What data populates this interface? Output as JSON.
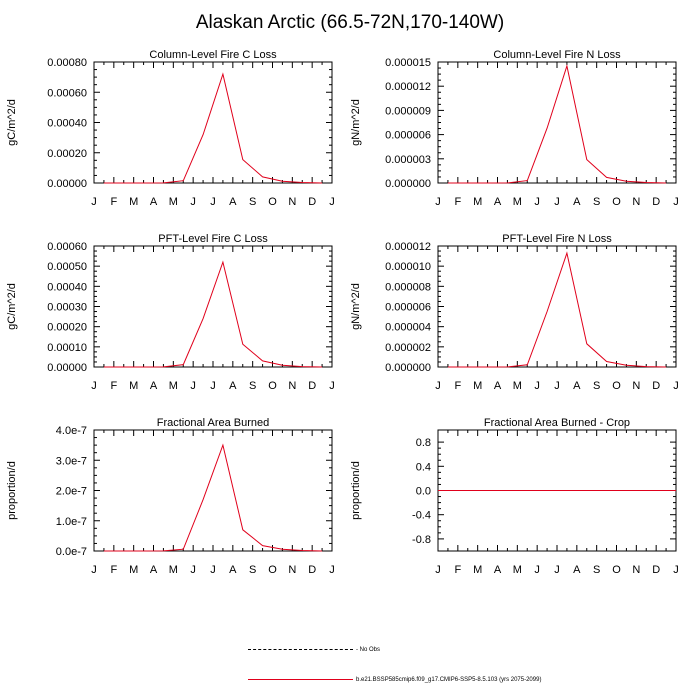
{
  "title": "Alaskan Arctic (66.5-72N,170-140W)",
  "colors": {
    "series": "#e0001b",
    "axis": "#000000",
    "background": "#ffffff"
  },
  "months": [
    "J",
    "F",
    "M",
    "A",
    "M",
    "J",
    "J",
    "A",
    "S",
    "O",
    "N",
    "D",
    "J"
  ],
  "chart_data": [
    {
      "type": "line",
      "title": "Column-Level Fire C Loss",
      "ylabel": "gC/m^2/d",
      "ylim": [
        0,
        0.0008
      ],
      "yticks": [
        "0.00000",
        "0.00020",
        "0.00040",
        "0.00060",
        "0.00080"
      ],
      "x": [
        0.5,
        1.5,
        2.5,
        3.5,
        4.5,
        5.5,
        6.5,
        7.5,
        8.5,
        9.5,
        10.5,
        11.5
      ],
      "series": [
        {
          "name": "b.e21.BSSP585cmip6.f09_g17.CMIP6-SSP5-8.5.103 (yrs 2075-2099)",
          "values": [
            0,
            0,
            0,
            5e-07,
            1.5e-05,
            0.00032,
            0.00072,
            0.000155,
            4e-05,
            1.2e-05,
            3e-06,
            0
          ]
        }
      ]
    },
    {
      "type": "line",
      "title": "Column-Level Fire N Loss",
      "ylabel": "gN/m^2/d",
      "ylim": [
        0,
        1.5e-05
      ],
      "yticks": [
        "0.000000",
        "0.000003",
        "0.000006",
        "0.000009",
        "0.000012",
        "0.000015"
      ],
      "x": [
        0.5,
        1.5,
        2.5,
        3.5,
        4.5,
        5.5,
        6.5,
        7.5,
        8.5,
        9.5,
        10.5,
        11.5
      ],
      "series": [
        {
          "name": "b.e21.BSSP585cmip6.f09_g17.CMIP6-SSP5-8.5.103 (yrs 2075-2099)",
          "values": [
            0,
            0,
            0,
            1e-08,
            3e-07,
            6.8e-06,
            1.45e-05,
            2.9e-06,
            7e-07,
            2.2e-07,
            6e-08,
            0
          ]
        }
      ]
    },
    {
      "type": "line",
      "title": "PFT-Level Fire C Loss",
      "ylabel": "gC/m^2/d",
      "ylim": [
        0,
        0.0006
      ],
      "yticks": [
        "0.00000",
        "0.00010",
        "0.00020",
        "0.00030",
        "0.00040",
        "0.00050",
        "0.00060"
      ],
      "x": [
        0.5,
        1.5,
        2.5,
        3.5,
        4.5,
        5.5,
        6.5,
        7.5,
        8.5,
        9.5,
        10.5,
        11.5
      ],
      "series": [
        {
          "name": "b.e21.BSSP585cmip6.f09_g17.CMIP6-SSP5-8.5.103 (yrs 2075-2099)",
          "values": [
            0,
            0,
            0,
            4e-07,
            1.2e-05,
            0.00024,
            0.00052,
            0.000113,
            3e-05,
            9e-06,
            2e-06,
            0
          ]
        }
      ]
    },
    {
      "type": "line",
      "title": "PFT-Level Fire N Loss",
      "ylabel": "gN/m^2/d",
      "ylim": [
        0,
        1.2e-05
      ],
      "yticks": [
        "0.000000",
        "0.000002",
        "0.000004",
        "0.000006",
        "0.000008",
        "0.000010",
        "0.000012"
      ],
      "x": [
        0.5,
        1.5,
        2.5,
        3.5,
        4.5,
        5.5,
        6.5,
        7.5,
        8.5,
        9.5,
        10.5,
        11.5
      ],
      "series": [
        {
          "name": "b.e21.BSSP585cmip6.f09_g17.CMIP6-SSP5-8.5.103 (yrs 2075-2099)",
          "values": [
            0,
            0,
            0,
            1e-08,
            2.2e-07,
            5.5e-06,
            1.13e-05,
            2.3e-06,
            5.5e-07,
            1.7e-07,
            4e-08,
            0
          ]
        }
      ]
    },
    {
      "type": "line",
      "title": "Fractional Area Burned",
      "ylabel": "proportion/d",
      "ylim": [
        0,
        4e-07
      ],
      "yticks": [
        "0.0e-7",
        "1.0e-7",
        "2.0e-7",
        "3.0e-7",
        "4.0e-7"
      ],
      "x": [
        0.5,
        1.5,
        2.5,
        3.5,
        4.5,
        5.5,
        6.5,
        7.5,
        8.5,
        9.5,
        10.5,
        11.5
      ],
      "series": [
        {
          "name": "b.e21.BSSP585cmip6.f09_g17.CMIP6-SSP5-8.5.103 (yrs 2075-2099)",
          "values": [
            0,
            0,
            0,
            2e-10,
            6e-09,
            1.7e-07,
            3.5e-07,
            7e-08,
            1.8e-08,
            6e-09,
            1.5e-09,
            0
          ]
        }
      ]
    },
    {
      "type": "line",
      "title": "Fractional Area Burned - Crop",
      "ylabel": "proportion/d",
      "ylim": [
        -1,
        1
      ],
      "yticks": [
        "-0.8",
        "-0.4",
        "0.0",
        "0.4",
        "0.8"
      ],
      "ytick_values": [
        -0.8,
        -0.4,
        0,
        0.4,
        0.8
      ],
      "x": [
        0,
        12
      ],
      "series": [
        {
          "name": "b.e21.BSSP585cmip6.f09_g17.CMIP6-SSP5-8.5.103 (yrs 2075-2099)",
          "values": [
            0,
            0
          ]
        }
      ]
    }
  ],
  "legend": [
    {
      "style": "dashed",
      "label": "No Obs"
    },
    {
      "style": "solid",
      "label": "b.e21.BSSP585cmip6.f09_g17.CMIP6-SSP5-8.5.103 (yrs 2075-2099)"
    }
  ]
}
